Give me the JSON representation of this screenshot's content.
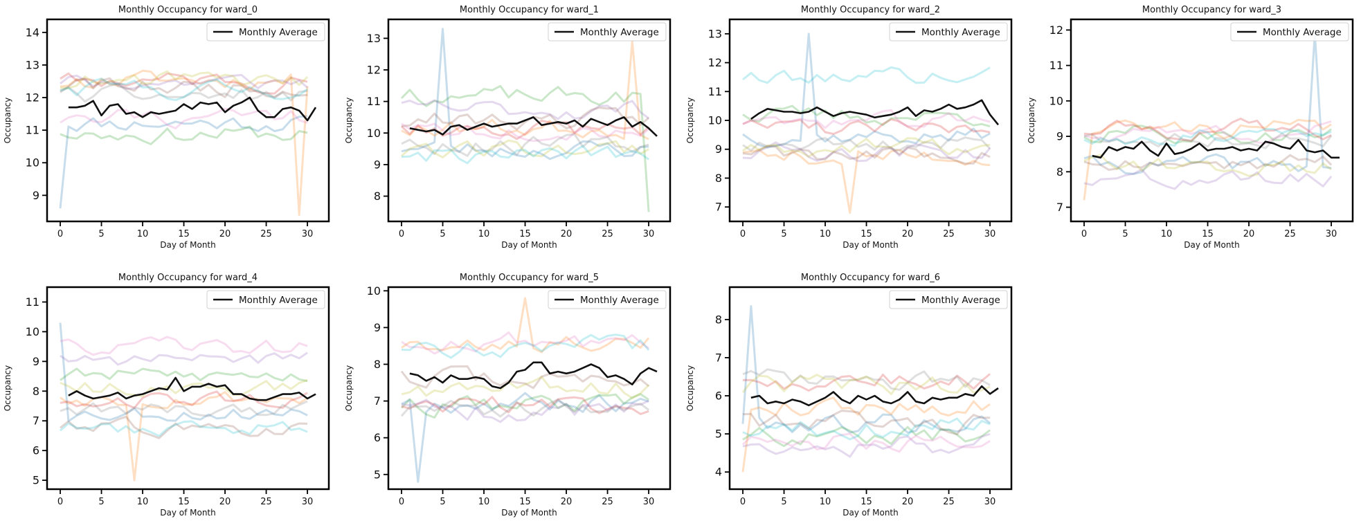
{
  "figure": {
    "ncols": 4,
    "nrows": 2
  },
  "palette": [
    "#1f77b4",
    "#ff7f0e",
    "#2ca02c",
    "#d62728",
    "#9467bd",
    "#8c564b",
    "#e377c2",
    "#7f7f7f",
    "#bcbd22",
    "#17becf"
  ],
  "chart_data": [
    {
      "type": "line",
      "title": "Monthly Occupancy for ward_0",
      "xlabel": "Day of Month",
      "ylabel": "Occupancy",
      "xlim": [
        -1.6,
        32.6
      ],
      "ylim": [
        8.2,
        14.4
      ],
      "xticks": [
        0,
        5,
        10,
        15,
        20,
        25,
        30
      ],
      "yticks": [
        9,
        10,
        11,
        12,
        13,
        14
      ],
      "legend": {
        "label": "Monthly Average",
        "position": "top-right"
      },
      "average": {
        "name": "Monthly Average",
        "x": [
          1,
          2,
          3,
          4,
          5,
          6,
          7,
          8,
          9,
          10,
          11,
          12,
          13,
          14,
          15,
          16,
          17,
          18,
          19,
          20,
          21,
          22,
          23,
          24,
          25,
          26,
          27,
          28,
          29,
          30,
          31
        ],
        "values": [
          11.7,
          11.7,
          11.75,
          11.9,
          11.45,
          11.75,
          11.8,
          11.5,
          11.55,
          11.4,
          11.55,
          11.5,
          11.55,
          11.6,
          11.8,
          11.65,
          11.85,
          11.8,
          11.85,
          11.55,
          11.75,
          11.85,
          12.0,
          11.6,
          11.4,
          11.4,
          11.65,
          11.7,
          11.6,
          11.3,
          11.7
        ]
      },
      "monthly_series": {
        "x_start": 0,
        "base": 11.7,
        "spread": 0.9,
        "noise": 0.5,
        "seed": 11,
        "fixed": [
          [
            0,
            8.6
          ],
          [
            29,
            8.4
          ]
        ]
      }
    },
    {
      "type": "line",
      "title": "Monthly Occupancy for ward_1",
      "xlabel": "Day of Month",
      "ylabel": "Occupancy",
      "xlim": [
        -1.6,
        32.6
      ],
      "ylim": [
        7.2,
        13.6
      ],
      "xticks": [
        0,
        5,
        10,
        15,
        20,
        25,
        30
      ],
      "yticks": [
        8,
        9,
        10,
        11,
        12,
        13
      ],
      "legend": {
        "label": "Monthly Average",
        "position": "top-right"
      },
      "average": {
        "name": "Monthly Average",
        "x": [
          1,
          2,
          3,
          4,
          5,
          6,
          7,
          8,
          9,
          10,
          11,
          12,
          13,
          14,
          15,
          16,
          17,
          18,
          19,
          20,
          21,
          22,
          23,
          24,
          25,
          26,
          27,
          28,
          29,
          30,
          31
        ],
        "values": [
          10.15,
          10.1,
          10.05,
          10.1,
          9.95,
          10.2,
          10.25,
          10.1,
          10.2,
          10.3,
          10.2,
          10.25,
          10.3,
          10.3,
          10.4,
          10.5,
          10.25,
          10.3,
          10.35,
          10.3,
          10.4,
          10.2,
          10.45,
          10.35,
          10.25,
          10.4,
          10.5,
          10.2,
          10.35,
          10.15,
          9.9
        ]
      },
      "monthly_series": {
        "x_start": 0,
        "base": 10.1,
        "spread": 1.2,
        "noise": 0.55,
        "seed": 23,
        "fixed": [
          [
            5,
            13.3
          ],
          [
            28,
            12.9
          ],
          [
            30,
            7.5
          ]
        ]
      }
    },
    {
      "type": "line",
      "title": "Monthly Occupancy for ward_2",
      "xlabel": "Day of Month",
      "ylabel": "Occupancy",
      "xlim": [
        -1.6,
        32.6
      ],
      "ylim": [
        6.5,
        13.5
      ],
      "xticks": [
        0,
        5,
        10,
        15,
        20,
        25,
        30
      ],
      "yticks": [
        7,
        8,
        9,
        10,
        11,
        12,
        13
      ],
      "legend": {
        "label": "Monthly Average",
        "position": "top-right"
      },
      "average": {
        "name": "Monthly Average",
        "x": [
          1,
          2,
          3,
          4,
          5,
          6,
          7,
          8,
          9,
          10,
          11,
          12,
          13,
          14,
          15,
          16,
          17,
          18,
          19,
          20,
          21,
          22,
          23,
          24,
          25,
          26,
          27,
          28,
          29,
          30,
          31
        ],
        "values": [
          10.05,
          10.25,
          10.4,
          10.35,
          10.3,
          10.3,
          10.25,
          10.3,
          10.45,
          10.3,
          10.15,
          10.25,
          10.3,
          10.25,
          10.2,
          10.1,
          10.15,
          10.2,
          10.3,
          10.45,
          10.15,
          10.35,
          10.3,
          10.4,
          10.55,
          10.4,
          10.45,
          10.55,
          10.7,
          10.2,
          9.85
        ]
      },
      "monthly_series": {
        "x_start": 0,
        "base": 10.2,
        "spread": 1.5,
        "noise": 0.55,
        "seed": 37,
        "fixed": [
          [
            8,
            13.0
          ],
          [
            13,
            6.8
          ]
        ]
      }
    },
    {
      "type": "line",
      "title": "Monthly Occupancy for ward_3",
      "xlabel": "Day of Month",
      "ylabel": "Occupancy",
      "xlim": [
        -1.6,
        32.6
      ],
      "ylim": [
        6.6,
        12.3
      ],
      "xticks": [
        0,
        5,
        10,
        15,
        20,
        25,
        30
      ],
      "yticks": [
        7,
        8,
        9,
        10,
        11,
        12
      ],
      "legend": {
        "label": "Monthly Average",
        "position": "top-right"
      },
      "average": {
        "name": "Monthly Average",
        "x": [
          1,
          2,
          3,
          4,
          5,
          6,
          7,
          8,
          9,
          10,
          11,
          12,
          13,
          14,
          15,
          16,
          17,
          18,
          19,
          20,
          21,
          22,
          23,
          24,
          25,
          26,
          27,
          28,
          29,
          30,
          31
        ],
        "values": [
          8.45,
          8.4,
          8.7,
          8.6,
          8.7,
          8.65,
          8.85,
          8.6,
          8.45,
          8.8,
          8.5,
          8.55,
          8.65,
          8.8,
          8.6,
          8.65,
          8.65,
          8.7,
          8.6,
          8.65,
          8.6,
          8.85,
          8.8,
          8.7,
          8.65,
          8.9,
          8.6,
          8.55,
          8.6,
          8.4,
          8.4
        ]
      },
      "monthly_series": {
        "x_start": 0,
        "base": 8.6,
        "spread": 0.85,
        "noise": 0.45,
        "seed": 41,
        "fixed": [
          [
            28,
            11.9
          ],
          [
            0,
            7.2
          ]
        ]
      }
    },
    {
      "type": "line",
      "title": "Monthly Occupancy for ward_4",
      "xlabel": "Day of Month",
      "ylabel": "Occupancy",
      "xlim": [
        -1.6,
        32.6
      ],
      "ylim": [
        4.7,
        11.5
      ],
      "xticks": [
        0,
        5,
        10,
        15,
        20,
        25,
        30
      ],
      "yticks": [
        5,
        6,
        7,
        8,
        9,
        10,
        11
      ],
      "legend": {
        "label": "Monthly Average",
        "position": "top-right"
      },
      "average": {
        "name": "Monthly Average",
        "x": [
          1,
          2,
          3,
          4,
          5,
          6,
          7,
          8,
          9,
          10,
          11,
          12,
          13,
          14,
          15,
          16,
          17,
          18,
          19,
          20,
          21,
          22,
          23,
          24,
          25,
          26,
          27,
          28,
          29,
          30,
          31
        ],
        "values": [
          7.85,
          8.0,
          7.85,
          7.75,
          7.8,
          7.85,
          7.95,
          7.75,
          7.85,
          7.9,
          8.0,
          8.1,
          8.05,
          8.45,
          8.0,
          8.15,
          8.15,
          8.25,
          8.15,
          8.2,
          7.9,
          7.9,
          7.75,
          7.7,
          7.7,
          7.8,
          7.9,
          7.9,
          7.95,
          7.75,
          7.9
        ]
      },
      "monthly_series": {
        "x_start": 0,
        "base": 8.0,
        "spread": 1.5,
        "noise": 0.5,
        "seed": 53,
        "fixed": [
          [
            0,
            10.3
          ],
          [
            9,
            5.0
          ]
        ]
      }
    },
    {
      "type": "line",
      "title": "Monthly Occupancy for ward_5",
      "xlabel": "Day of Month",
      "ylabel": "Occupancy",
      "xlim": [
        -1.6,
        32.6
      ],
      "ylim": [
        4.6,
        10.1
      ],
      "xticks": [
        0,
        5,
        10,
        15,
        20,
        25,
        30
      ],
      "yticks": [
        5,
        6,
        7,
        8,
        9,
        10
      ],
      "legend": {
        "label": "Monthly Average",
        "position": "top-right"
      },
      "average": {
        "name": "Monthly Average",
        "x": [
          1,
          2,
          3,
          4,
          5,
          6,
          7,
          8,
          9,
          10,
          11,
          12,
          13,
          14,
          15,
          16,
          17,
          18,
          19,
          20,
          21,
          22,
          23,
          24,
          25,
          26,
          27,
          28,
          29,
          30,
          31
        ],
        "values": [
          7.75,
          7.7,
          7.55,
          7.65,
          7.5,
          7.7,
          7.6,
          7.6,
          7.65,
          7.6,
          7.4,
          7.35,
          7.5,
          7.8,
          7.85,
          8.05,
          8.05,
          7.75,
          7.8,
          7.75,
          7.8,
          7.9,
          8.0,
          7.9,
          7.65,
          7.7,
          7.6,
          7.45,
          7.75,
          7.9,
          7.8
        ]
      },
      "monthly_series": {
        "x_start": 0,
        "base": 7.6,
        "spread": 1.3,
        "noise": 0.5,
        "seed": 67,
        "fixed": [
          [
            2,
            4.8
          ],
          [
            15,
            9.8
          ]
        ]
      }
    },
    {
      "type": "line",
      "title": "Monthly Occupancy for ward_6",
      "xlabel": "Day of Month",
      "ylabel": "Occupancy",
      "xlim": [
        -1.6,
        32.6
      ],
      "ylim": [
        3.55,
        8.85
      ],
      "xticks": [
        0,
        5,
        10,
        15,
        20,
        25,
        30
      ],
      "yticks": [
        4,
        5,
        6,
        7,
        8
      ],
      "legend": {
        "label": "Monthly Average",
        "position": "top-right"
      },
      "average": {
        "name": "Monthly Average",
        "x": [
          1,
          2,
          3,
          4,
          5,
          6,
          7,
          8,
          9,
          10,
          11,
          12,
          13,
          14,
          15,
          16,
          17,
          18,
          19,
          20,
          21,
          22,
          23,
          24,
          25,
          26,
          27,
          28,
          29,
          30,
          31
        ],
        "values": [
          5.95,
          6.0,
          5.8,
          5.85,
          5.8,
          5.9,
          5.85,
          5.75,
          5.85,
          5.95,
          6.1,
          5.9,
          5.8,
          6.0,
          5.9,
          6.0,
          5.85,
          5.8,
          5.9,
          6.1,
          5.85,
          5.8,
          5.95,
          5.9,
          5.95,
          5.95,
          6.05,
          6.0,
          6.25,
          6.05,
          6.2
        ]
      },
      "monthly_series": {
        "x_start": 0,
        "base": 5.8,
        "spread": 1.1,
        "noise": 0.5,
        "seed": 79,
        "fixed": [
          [
            1,
            8.35
          ],
          [
            0,
            4.0
          ]
        ]
      }
    }
  ]
}
